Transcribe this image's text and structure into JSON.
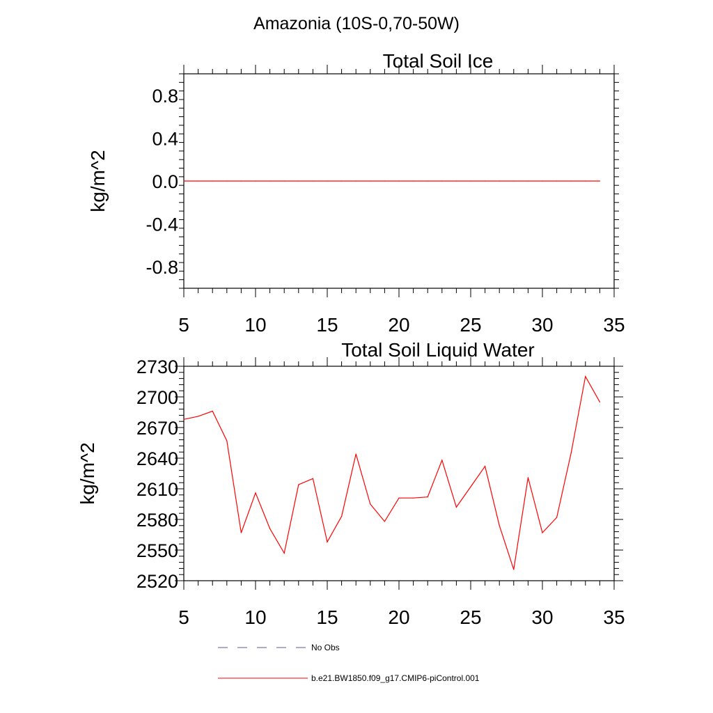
{
  "page_title": "Amazonia (10S-0,70-50W)",
  "colors": {
    "model": "#ff0000",
    "obs": "#5a5a8a",
    "axis": "#000000"
  },
  "legend": {
    "obs_label": "No Obs",
    "model_label": "b.e21.BW1850.f09_g17.CMIP6-piControl.001"
  },
  "chart_data": [
    {
      "type": "line",
      "title": "Total Soil Ice",
      "xlabel": "",
      "ylabel": "kg/m^2",
      "xlim": [
        5,
        35
      ],
      "ylim": [
        -1.0,
        1.0
      ],
      "xticks": [
        5,
        10,
        15,
        20,
        25,
        30,
        35
      ],
      "yticks": [
        -0.8,
        -0.4,
        0.0,
        0.4,
        0.8
      ],
      "ytick_labels": [
        "-0.8",
        "-0.4",
        "0.0",
        "0.4",
        "0.8"
      ],
      "series": [
        {
          "name": "b.e21.BW1850.f09_g17.CMIP6-piControl.001",
          "x": [
            5,
            6,
            7,
            8,
            9,
            10,
            11,
            12,
            13,
            14,
            15,
            16,
            17,
            18,
            19,
            20,
            21,
            22,
            23,
            24,
            25,
            26,
            27,
            28,
            29,
            30,
            31,
            32,
            33,
            34
          ],
          "y": [
            0,
            0,
            0,
            0,
            0,
            0,
            0,
            0,
            0,
            0,
            0,
            0,
            0,
            0,
            0,
            0,
            0,
            0,
            0,
            0,
            0,
            0,
            0,
            0,
            0,
            0,
            0,
            0,
            0,
            0
          ]
        }
      ]
    },
    {
      "type": "line",
      "title": "Total Soil Liquid Water",
      "xlabel": "",
      "ylabel": "kg/m^2",
      "xlim": [
        5,
        35
      ],
      "ylim": [
        2520,
        2730
      ],
      "xticks": [
        5,
        10,
        15,
        20,
        25,
        30,
        35
      ],
      "yticks": [
        2520,
        2550,
        2580,
        2610,
        2640,
        2670,
        2700,
        2730
      ],
      "ytick_labels": [
        "2520",
        "2550",
        "2580",
        "2610",
        "2640",
        "2670",
        "2700",
        "2730"
      ],
      "series": [
        {
          "name": "b.e21.BW1850.f09_g17.CMIP6-piControl.001",
          "x": [
            5,
            6,
            7,
            8,
            9,
            10,
            11,
            12,
            13,
            14,
            15,
            16,
            17,
            18,
            19,
            20,
            21,
            22,
            23,
            24,
            25,
            26,
            27,
            28,
            29,
            30,
            31,
            32,
            33,
            34
          ],
          "y": [
            2678,
            2681,
            2686,
            2657,
            2567,
            2606,
            2571,
            2547,
            2614,
            2620,
            2558,
            2583,
            2644,
            2595,
            2578,
            2601,
            2601,
            2602,
            2638,
            2592,
            2612,
            2632,
            2574,
            2531,
            2621,
            2567,
            2582,
            2645,
            2720,
            2695
          ]
        }
      ]
    }
  ]
}
